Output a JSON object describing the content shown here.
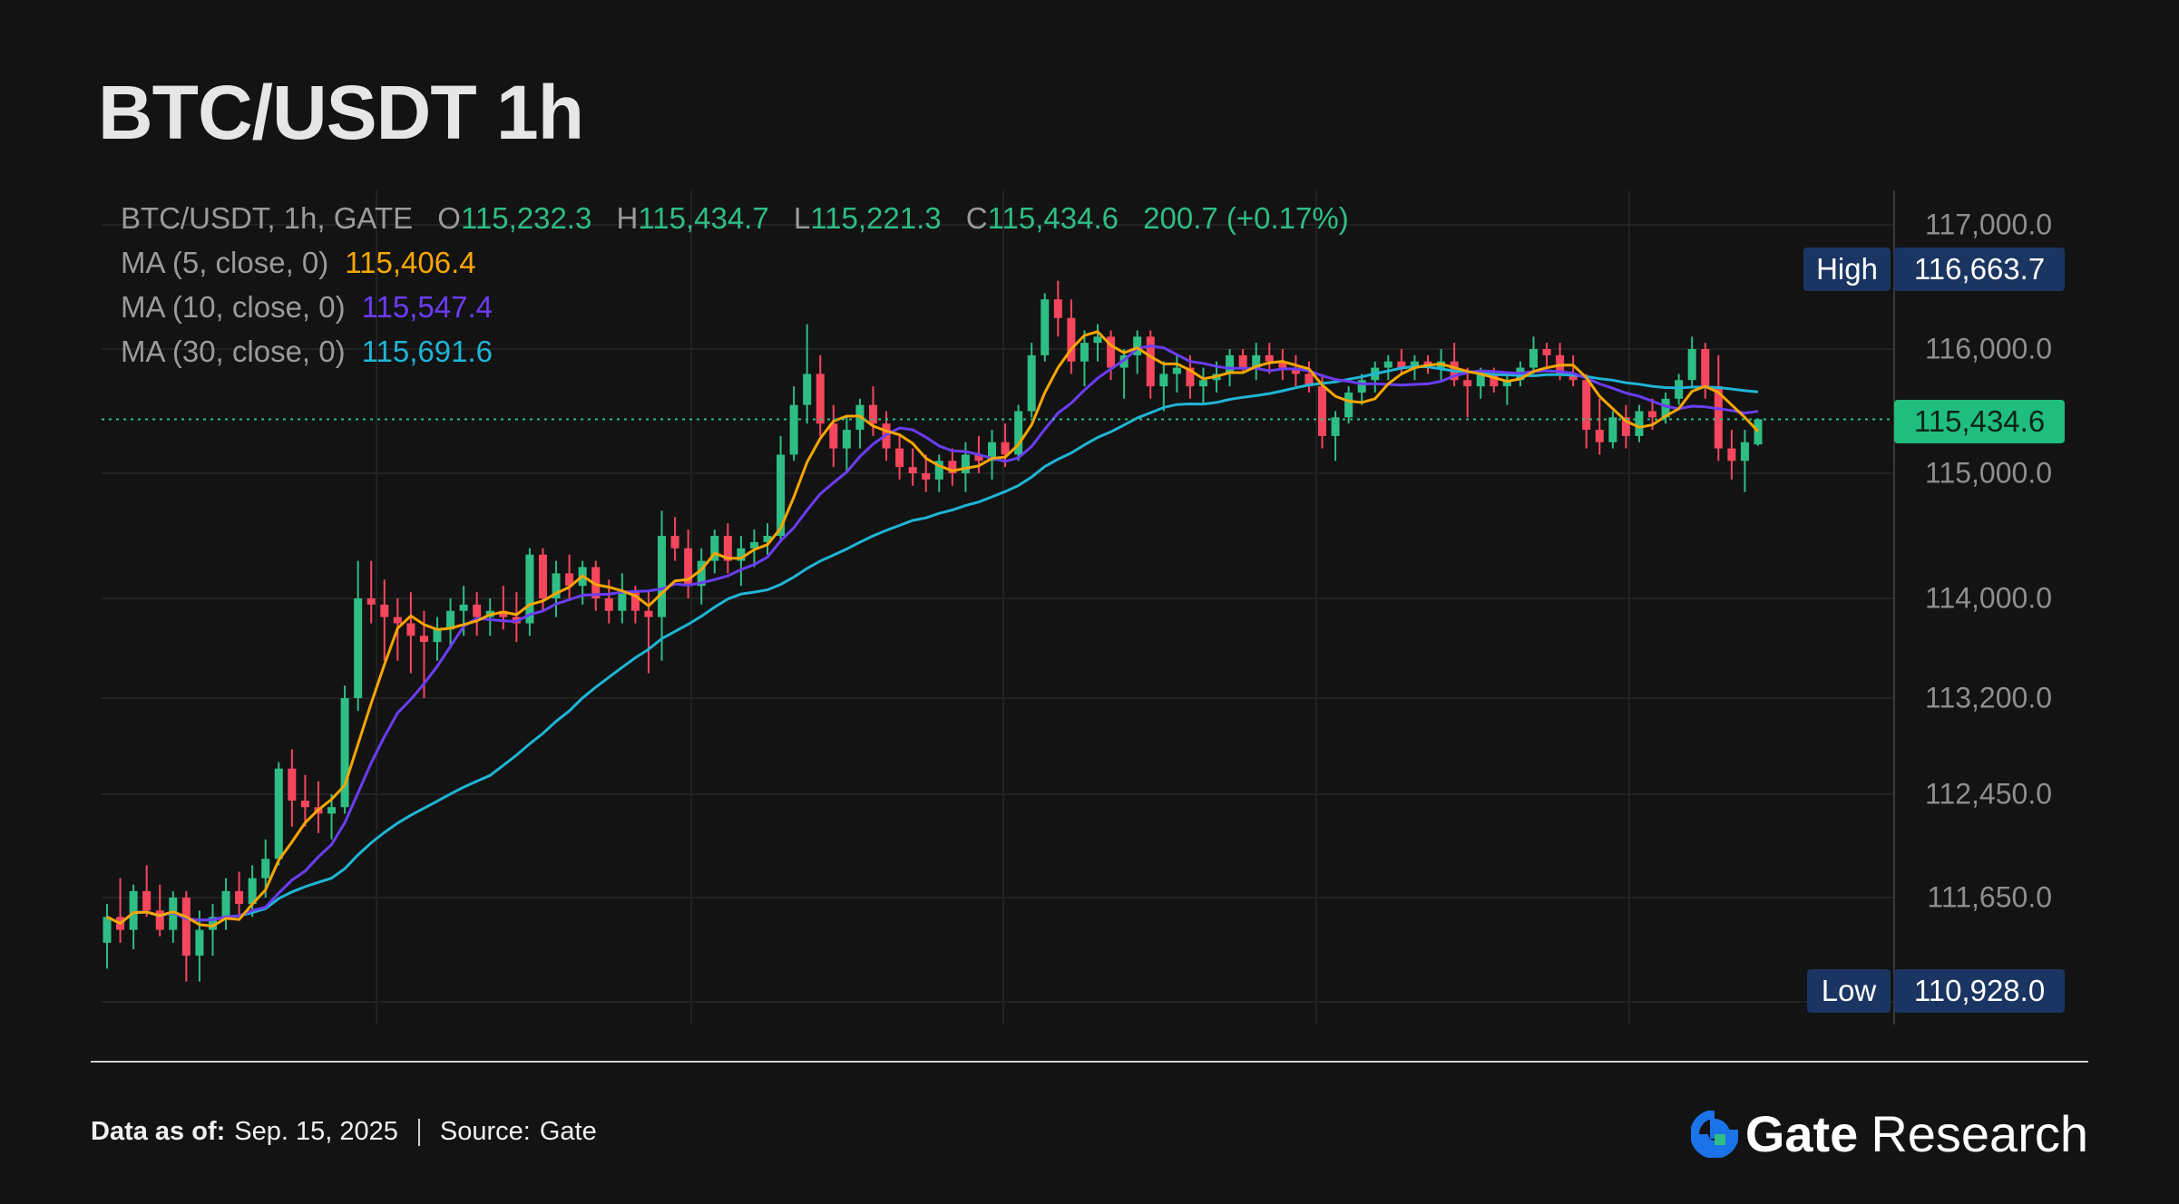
{
  "title": "BTC/USDT 1h",
  "legend": {
    "symbol": "BTC/USDT, 1h, GATE",
    "o_label": "O",
    "o": "115,232.3",
    "h_label": "H",
    "h": "115,434.7",
    "l_label": "L",
    "l": "115,221.3",
    "c_label": "C",
    "c": "115,434.6",
    "change": "200.7 (+0.17%)",
    "ma5_label": "MA (5, close, 0)",
    "ma5": "115,406.4",
    "ma10_label": "MA (10, close, 0)",
    "ma10": "115,547.4",
    "ma30_label": "MA (30, close, 0)",
    "ma30": "115,691.6"
  },
  "tags": {
    "high_label": "High",
    "high_value": "116,663.7",
    "low_label": "Low",
    "low_value": "110,928.0",
    "last_value": "115,434.6"
  },
  "footer": {
    "data_label": "Data as of:",
    "data_value": "Sep. 15, 2025",
    "source_label": "Source:",
    "source_value": "Gate",
    "brand_gate": "Gate",
    "brand_research": "Research"
  },
  "colors": {
    "up": "#2ebd85",
    "down": "#f6465d",
    "ma5": "#f7a600",
    "ma10": "#6b3df5",
    "ma30": "#1fb5d6",
    "grid": "#222222",
    "bg": "#131313"
  },
  "chart_data": {
    "type": "candlestick",
    "title": "BTC/USDT 1h",
    "y_ticks": [
      "117,000.0",
      "116,000.0",
      "115,000.0",
      "114,000.0",
      "113,200.0",
      "112,450.0",
      "111,650.0"
    ],
    "y_tick_values": [
      117000,
      116000,
      115000,
      114000,
      113200,
      112450,
      111650
    ],
    "high": 116663.7,
    "low": 110928.0,
    "last": 115434.6,
    "ylim": [
      110800,
      117100
    ],
    "candles": [
      [
        111300,
        111600,
        111100,
        111500
      ],
      [
        111500,
        111800,
        111300,
        111400
      ],
      [
        111400,
        111750,
        111250,
        111700
      ],
      [
        111700,
        111900,
        111500,
        111550
      ],
      [
        111550,
        111750,
        111350,
        111400
      ],
      [
        111400,
        111700,
        111300,
        111650
      ],
      [
        111650,
        111700,
        111000,
        111200
      ],
      [
        111200,
        111550,
        111000,
        111400
      ],
      [
        111400,
        111600,
        111200,
        111500
      ],
      [
        111500,
        111800,
        111400,
        111700
      ],
      [
        111700,
        111850,
        111500,
        111600
      ],
      [
        111600,
        111900,
        111500,
        111800
      ],
      [
        111800,
        112100,
        111650,
        111950
      ],
      [
        111950,
        112700,
        111900,
        112650
      ],
      [
        112650,
        112800,
        112200,
        112400
      ],
      [
        112400,
        112600,
        112200,
        112350
      ],
      [
        112350,
        112550,
        112150,
        112300
      ],
      [
        112300,
        112450,
        112100,
        112350
      ],
      [
        112350,
        113300,
        112300,
        113200
      ],
      [
        113200,
        114300,
        113100,
        114000
      ],
      [
        114000,
        114300,
        113800,
        113950
      ],
      [
        113950,
        114150,
        113500,
        113850
      ],
      [
        113850,
        114000,
        113500,
        113800
      ],
      [
        113800,
        114050,
        113400,
        113700
      ],
      [
        113700,
        113900,
        113200,
        113650
      ],
      [
        113650,
        113850,
        113500,
        113750
      ],
      [
        113750,
        114000,
        113600,
        113900
      ],
      [
        113900,
        114100,
        113700,
        113950
      ],
      [
        113950,
        114050,
        113700,
        113850
      ],
      [
        113850,
        114000,
        113700,
        113900
      ],
      [
        113900,
        114100,
        113750,
        113850
      ],
      [
        113850,
        114050,
        113650,
        113800
      ],
      [
        113800,
        114400,
        113700,
        114350
      ],
      [
        114350,
        114400,
        113900,
        114000
      ],
      [
        114000,
        114300,
        113850,
        114200
      ],
      [
        114200,
        114350,
        114000,
        114100
      ],
      [
        114100,
        114300,
        113950,
        114250
      ],
      [
        114250,
        114300,
        113900,
        114000
      ],
      [
        114000,
        114150,
        113800,
        113900
      ],
      [
        113900,
        114200,
        113800,
        114050
      ],
      [
        114050,
        114100,
        113800,
        113900
      ],
      [
        113900,
        114050,
        113400,
        113850
      ],
      [
        113850,
        114700,
        113500,
        114500
      ],
      [
        114500,
        114650,
        114300,
        114400
      ],
      [
        114400,
        114550,
        114000,
        114100
      ],
      [
        114100,
        114400,
        113950,
        114300
      ],
      [
        114300,
        114550,
        114200,
        114500
      ],
      [
        114500,
        114600,
        114200,
        114300
      ],
      [
        114300,
        114500,
        114100,
        114400
      ],
      [
        114400,
        114550,
        114250,
        114450
      ],
      [
        114450,
        114600,
        114350,
        114500
      ],
      [
        114500,
        115300,
        114450,
        115150
      ],
      [
        115150,
        115700,
        115100,
        115550
      ],
      [
        115550,
        116200,
        115400,
        115800
      ],
      [
        115800,
        115950,
        115300,
        115400
      ],
      [
        115400,
        115550,
        115050,
        115200
      ],
      [
        115200,
        115450,
        115000,
        115350
      ],
      [
        115350,
        115600,
        115200,
        115550
      ],
      [
        115550,
        115700,
        115300,
        115400
      ],
      [
        115400,
        115500,
        115100,
        115200
      ],
      [
        115200,
        115300,
        114950,
        115050
      ],
      [
        115050,
        115200,
        114900,
        115000
      ],
      [
        115000,
        115150,
        114850,
        114950
      ],
      [
        114950,
        115150,
        114850,
        115100
      ],
      [
        115100,
        115200,
        114900,
        115000
      ],
      [
        115000,
        115250,
        114850,
        115150
      ],
      [
        115150,
        115300,
        115000,
        115100
      ],
      [
        115100,
        115350,
        114950,
        115250
      ],
      [
        115250,
        115400,
        115050,
        115150
      ],
      [
        115150,
        115550,
        115100,
        115500
      ],
      [
        115500,
        116050,
        115450,
        115950
      ],
      [
        115950,
        116450,
        115900,
        116400
      ],
      [
        116400,
        116550,
        116100,
        116250
      ],
      [
        116250,
        116400,
        115800,
        115900
      ],
      [
        115900,
        116150,
        115700,
        116050
      ],
      [
        116050,
        116200,
        115900,
        116100
      ],
      [
        116100,
        116150,
        115750,
        115850
      ],
      [
        115850,
        116000,
        115600,
        115950
      ],
      [
        115950,
        116150,
        115800,
        116100
      ],
      [
        116100,
        116150,
        115600,
        115700
      ],
      [
        115700,
        115900,
        115500,
        115800
      ],
      [
        115800,
        115950,
        115650,
        115850
      ],
      [
        115850,
        115950,
        115600,
        115700
      ],
      [
        115700,
        115850,
        115550,
        115750
      ],
      [
        115750,
        115900,
        115650,
        115800
      ],
      [
        115800,
        116000,
        115700,
        115950
      ],
      [
        115950,
        116000,
        115800,
        115850
      ],
      [
        115850,
        116050,
        115750,
        115950
      ],
      [
        115950,
        116050,
        115800,
        115900
      ],
      [
        115900,
        116000,
        115750,
        115850
      ],
      [
        115850,
        115950,
        115700,
        115800
      ],
      [
        115800,
        115900,
        115650,
        115700
      ],
      [
        115700,
        115800,
        115200,
        115300
      ],
      [
        115300,
        115500,
        115100,
        115450
      ],
      [
        115450,
        115700,
        115400,
        115650
      ],
      [
        115650,
        115800,
        115550,
        115750
      ],
      [
        115750,
        115900,
        115650,
        115850
      ],
      [
        115850,
        115950,
        115750,
        115900
      ],
      [
        115900,
        116000,
        115800,
        115850
      ],
      [
        115850,
        115950,
        115750,
        115900
      ],
      [
        115900,
        115950,
        115800,
        115850
      ],
      [
        115850,
        116000,
        115750,
        115900
      ],
      [
        115900,
        116050,
        115700,
        115750
      ],
      [
        115750,
        115850,
        115450,
        115700
      ],
      [
        115700,
        115850,
        115600,
        115800
      ],
      [
        115800,
        115850,
        115650,
        115700
      ],
      [
        115700,
        115800,
        115550,
        115750
      ],
      [
        115750,
        115900,
        115700,
        115850
      ],
      [
        115850,
        116100,
        115800,
        116000
      ],
      [
        116000,
        116050,
        115850,
        115950
      ],
      [
        115950,
        116050,
        115750,
        115800
      ],
      [
        115800,
        115950,
        115700,
        115750
      ],
      [
        115750,
        115800,
        115200,
        115350
      ],
      [
        115350,
        115600,
        115150,
        115250
      ],
      [
        115250,
        115500,
        115200,
        115450
      ],
      [
        115450,
        115550,
        115200,
        115300
      ],
      [
        115300,
        115550,
        115250,
        115500
      ],
      [
        115500,
        115600,
        115350,
        115450
      ],
      [
        115450,
        115650,
        115400,
        115600
      ],
      [
        115600,
        115800,
        115550,
        115750
      ],
      [
        115750,
        116100,
        115700,
        116000
      ],
      [
        116000,
        116050,
        115600,
        115700
      ],
      [
        115700,
        115950,
        115100,
        115200
      ],
      [
        115200,
        115350,
        114950,
        115100
      ],
      [
        115100,
        115350,
        114850,
        115250
      ],
      [
        115232.3,
        115434.7,
        115221.3,
        115434.6
      ]
    ],
    "series": [
      {
        "name": "MA (5, close, 0)",
        "last": 115406.4
      },
      {
        "name": "MA (10, close, 0)",
        "last": 115547.4
      },
      {
        "name": "MA (30, close, 0)",
        "last": 115691.6
      }
    ],
    "grid": true
  }
}
